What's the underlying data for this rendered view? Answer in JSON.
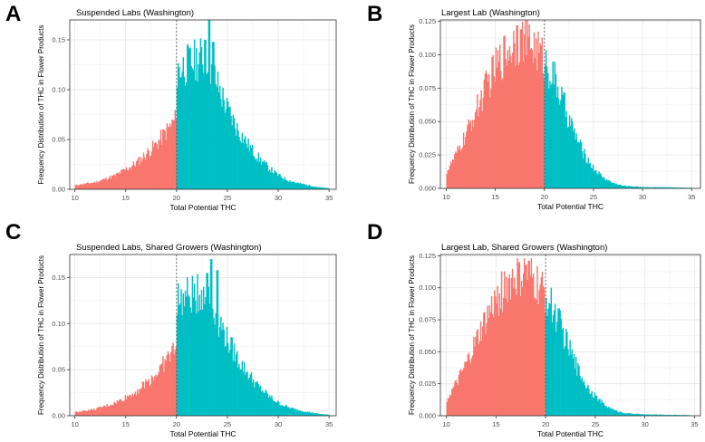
{
  "chart_data": [
    {
      "type": "bar",
      "panel_label": "A",
      "title": "Suspended Labs (Washington)",
      "xlabel": "Total Potential THC",
      "ylabel": "Frequency Distribution of THC in Flower Products",
      "xlim": [
        9.5,
        35.7
      ],
      "ylim": [
        0,
        0.17
      ],
      "xticks": [
        "10",
        "15",
        "20",
        "25",
        "30",
        "35"
      ],
      "xtick_values": [
        10,
        15,
        20,
        25,
        30,
        35
      ],
      "yticks": [
        "0.00",
        "0.05",
        "0.10",
        "0.15"
      ],
      "ytick_values": [
        0,
        0.05,
        0.1,
        0.15
      ],
      "threshold": 20,
      "bin_width": 0.1,
      "colors": {
        "below": "#F8766D",
        "above": "#00BFC4",
        "threshold_line": "#555555"
      },
      "profile_points": [
        [
          10,
          0.004
        ],
        [
          12,
          0.007
        ],
        [
          14,
          0.014
        ],
        [
          16,
          0.026
        ],
        [
          18,
          0.045
        ],
        [
          19.9,
          0.07
        ],
        [
          20.1,
          0.12
        ],
        [
          21,
          0.125
        ],
        [
          22,
          0.13
        ],
        [
          23,
          0.135
        ],
        [
          24,
          0.105
        ],
        [
          25,
          0.08
        ],
        [
          26,
          0.06
        ],
        [
          27,
          0.045
        ],
        [
          28,
          0.032
        ],
        [
          29,
          0.022
        ],
        [
          30,
          0.014
        ],
        [
          31,
          0.009
        ],
        [
          32,
          0.006
        ],
        [
          33,
          0.004
        ],
        [
          34,
          0.002
        ],
        [
          35,
          0.001
        ]
      ],
      "peaks": [
        [
          23.2,
          0.172
        ],
        [
          22.8,
          0.15
        ],
        [
          23.6,
          0.148
        ]
      ],
      "grid": true
    },
    {
      "type": "bar",
      "panel_label": "B",
      "title": "Largest Lab (Washington)",
      "xlabel": "Total Potential THC",
      "ylabel": "Frequency Distribution of THC in Flower Products",
      "xlim": [
        9.4,
        35.9
      ],
      "ylim": [
        0,
        0.126
      ],
      "xticks": [
        "10",
        "15",
        "20",
        "25",
        "30",
        "35"
      ],
      "xtick_values": [
        10,
        15,
        20,
        25,
        30,
        35
      ],
      "yticks": [
        "0.000",
        "0.025",
        "0.050",
        "0.075",
        "0.100",
        "0.125"
      ],
      "ytick_values": [
        0,
        0.025,
        0.05,
        0.075,
        0.1,
        0.125
      ],
      "threshold": 20,
      "bin_width": 0.1,
      "colors": {
        "below": "#F8766D",
        "above": "#00BFC4",
        "threshold_line": "#555555"
      },
      "profile_points": [
        [
          10,
          0.012
        ],
        [
          11,
          0.025
        ],
        [
          12,
          0.04
        ],
        [
          13,
          0.058
        ],
        [
          14,
          0.075
        ],
        [
          15,
          0.09
        ],
        [
          16,
          0.102
        ],
        [
          17,
          0.11
        ],
        [
          18,
          0.112
        ],
        [
          19,
          0.106
        ],
        [
          20,
          0.096
        ],
        [
          21,
          0.082
        ],
        [
          22,
          0.062
        ],
        [
          23,
          0.042
        ],
        [
          24,
          0.026
        ],
        [
          25,
          0.015
        ],
        [
          26,
          0.008
        ],
        [
          27,
          0.004
        ],
        [
          28,
          0.002
        ],
        [
          30,
          0.001
        ],
        [
          35,
          0.0005
        ]
      ],
      "peaks": [
        [
          17.2,
          0.122
        ],
        [
          17.6,
          0.119
        ]
      ],
      "grid": true
    },
    {
      "type": "bar",
      "panel_label": "C",
      "title": "Suspended Labs, Shared Growers (Washington)",
      "xlabel": "Total Potential THC",
      "ylabel": "Frequency Distribution of THC in Flower Products",
      "xlim": [
        9.5,
        35.7
      ],
      "ylim": [
        0,
        0.175
      ],
      "xticks": [
        "10",
        "15",
        "20",
        "25",
        "30",
        "35"
      ],
      "xtick_values": [
        10,
        15,
        20,
        25,
        30,
        35
      ],
      "yticks": [
        "0.00",
        "0.05",
        "0.10",
        "0.15"
      ],
      "ytick_values": [
        0,
        0.05,
        0.1,
        0.15
      ],
      "threshold": 20,
      "bin_width": 0.1,
      "colors": {
        "below": "#F8766D",
        "above": "#00BFC4",
        "threshold_line": "#555555"
      },
      "profile_points": [
        [
          10,
          0.004
        ],
        [
          12,
          0.007
        ],
        [
          14,
          0.014
        ],
        [
          16,
          0.026
        ],
        [
          18,
          0.045
        ],
        [
          19.9,
          0.075
        ],
        [
          20.1,
          0.125
        ],
        [
          21,
          0.128
        ],
        [
          22,
          0.132
        ],
        [
          23,
          0.138
        ],
        [
          24,
          0.108
        ],
        [
          25,
          0.082
        ],
        [
          26,
          0.062
        ],
        [
          27,
          0.046
        ],
        [
          28,
          0.032
        ],
        [
          29,
          0.022
        ],
        [
          30,
          0.014
        ],
        [
          31,
          0.009
        ],
        [
          32,
          0.006
        ],
        [
          33,
          0.004
        ],
        [
          34,
          0.002
        ],
        [
          35,
          0.001
        ]
      ],
      "peaks": [
        [
          23.4,
          0.17
        ],
        [
          23.0,
          0.155
        ],
        [
          24.0,
          0.158
        ]
      ],
      "grid": true
    },
    {
      "type": "bar",
      "panel_label": "D",
      "title": "Largest Lab, Shared Growers (Washington)",
      "xlabel": "Total Potential THC",
      "ylabel": "Frequency Distribution of THC in Flower Products",
      "xlim": [
        9.4,
        35.6
      ],
      "ylim": [
        0,
        0.126
      ],
      "xticks": [
        "10",
        "15",
        "20",
        "25",
        "30",
        "35"
      ],
      "xtick_values": [
        10,
        15,
        20,
        25,
        30,
        35
      ],
      "yticks": [
        "0.000",
        "0.025",
        "0.050",
        "0.075",
        "0.100",
        "0.125"
      ],
      "ytick_values": [
        0,
        0.025,
        0.05,
        0.075,
        0.1,
        0.125
      ],
      "threshold": 20,
      "bin_width": 0.1,
      "colors": {
        "below": "#F8766D",
        "above": "#00BFC4",
        "threshold_line": "#555555"
      },
      "profile_points": [
        [
          10,
          0.012
        ],
        [
          11,
          0.025
        ],
        [
          12,
          0.04
        ],
        [
          13,
          0.058
        ],
        [
          14,
          0.075
        ],
        [
          15,
          0.09
        ],
        [
          16,
          0.102
        ],
        [
          17,
          0.108
        ],
        [
          18,
          0.11
        ],
        [
          19,
          0.104
        ],
        [
          20,
          0.094
        ],
        [
          21,
          0.08
        ],
        [
          22,
          0.06
        ],
        [
          23,
          0.04
        ],
        [
          24,
          0.025
        ],
        [
          25,
          0.015
        ],
        [
          26,
          0.008
        ],
        [
          27,
          0.004
        ],
        [
          28,
          0.002
        ],
        [
          30,
          0.001
        ],
        [
          34.5,
          0.0005
        ]
      ],
      "peaks": [
        [
          17.3,
          0.12
        ],
        [
          18.0,
          0.118
        ]
      ],
      "grid": true
    }
  ]
}
